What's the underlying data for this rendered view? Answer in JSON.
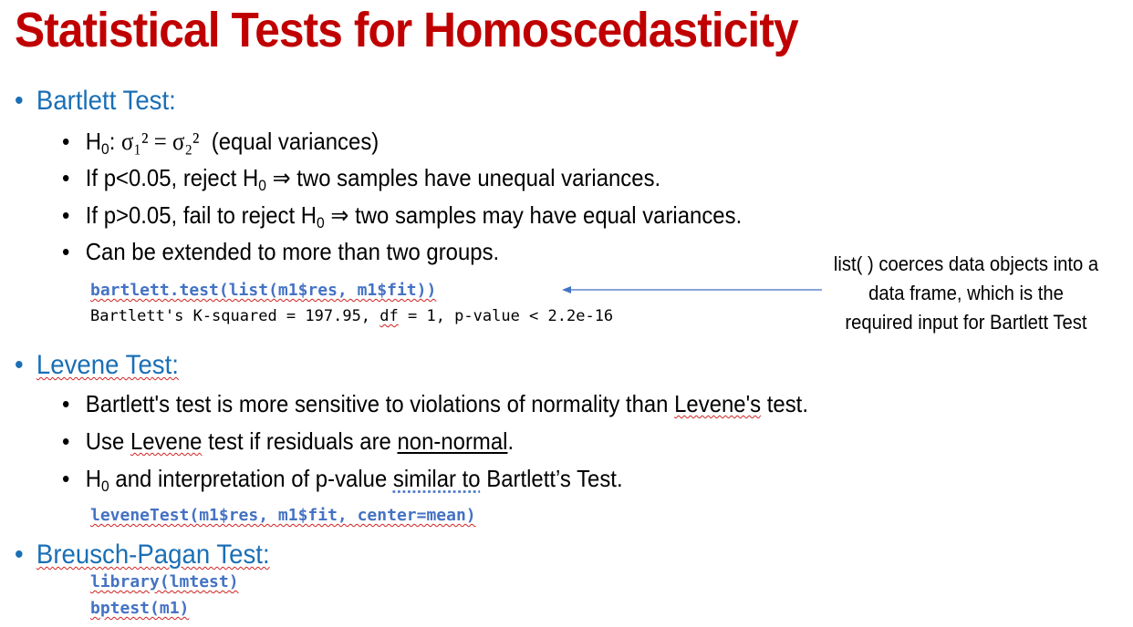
{
  "title": "Statistical Tests for Homoscedasticity",
  "bartlett": {
    "heading": "Bartlett Test:",
    "h0_label": "H",
    "h0_sub": "0",
    "h0_sep": ": ",
    "h0_math": "σ₁² = σ₂²",
    "h0_note": "(equal variances)",
    "reject_pre": "If p<0.05, reject H",
    "reject_post": " ⇒ two samples have unequal variances.",
    "fail_pre": "If p>0.05, fail to reject H",
    "fail_post": " ⇒ two samples may have equal variances.",
    "extend": "Can be extended to more than two groups.",
    "code": "bartlett.test(list(m1$res, m1$fit))",
    "output_pre": "Bartlett's K-squared = 197.95, ",
    "output_df": "df",
    "output_post": " = 1, p-value < 2.2e-16",
    "note": "list( ) coerces data objects into a data frame, which is the required input for Bartlett Test"
  },
  "levene": {
    "heading": "Levene Test:",
    "sens_pre": "Bartlett's test is more sensitive to violations of normality than ",
    "sens_word": "Levene's",
    "sens_post": " test.",
    "use_pre": "Use ",
    "use_word": "Levene",
    "use_mid": " test if residuals are ",
    "use_ul": "non-normal",
    "use_post": ".",
    "interp_pre": "H",
    "interp_sub": "0",
    "interp_mid": " and interpretation of p-value ",
    "interp_dotted": "similar to",
    "interp_post": " Bartlett’s Test.",
    "code": "leveneTest(m1$res, m1$fit, center=mean)"
  },
  "bp": {
    "heading": "Breusch-Pagan Test:",
    "code1": "library(lmtest)",
    "code2": "bptest(m1)"
  },
  "colors": {
    "title": "#c00000",
    "heading": "#1a6fb5",
    "code": "#4472c4",
    "arrow": "#4472c4"
  }
}
